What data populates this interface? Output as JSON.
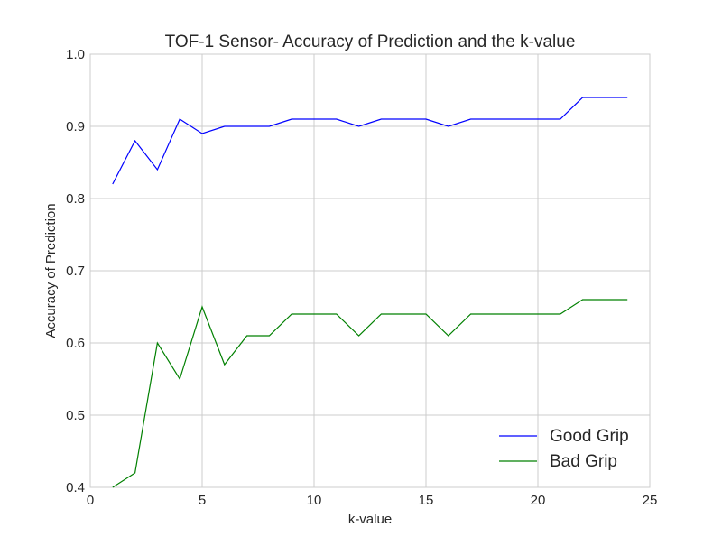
{
  "chart_data": {
    "type": "line",
    "title": "TOF-1 Sensor- Accuracy of Prediction and the k-value",
    "xlabel": "k-value",
    "ylabel": "Accuracy of Prediction",
    "xlim": [
      0,
      25
    ],
    "ylim": [
      0.4,
      1.0
    ],
    "xticks": [
      0,
      5,
      10,
      15,
      20,
      25
    ],
    "yticks": [
      0.4,
      0.5,
      0.6,
      0.7,
      0.8,
      0.9,
      1.0
    ],
    "xtick_labels": [
      "0",
      "5",
      "10",
      "15",
      "20",
      "25"
    ],
    "ytick_labels": [
      "0.4",
      "0.5",
      "0.6",
      "0.7",
      "0.8",
      "0.9",
      "1.0"
    ],
    "grid": true,
    "legend_position": "bottom-right",
    "x": [
      1,
      2,
      3,
      4,
      5,
      6,
      7,
      8,
      9,
      10,
      11,
      12,
      13,
      14,
      15,
      16,
      17,
      18,
      19,
      20,
      21,
      22,
      23,
      24
    ],
    "series": [
      {
        "name": "Good Grip",
        "color": "#0000ff",
        "values": [
          0.82,
          0.88,
          0.84,
          0.91,
          0.89,
          0.9,
          0.9,
          0.9,
          0.91,
          0.91,
          0.91,
          0.9,
          0.91,
          0.91,
          0.91,
          0.9,
          0.91,
          0.91,
          0.91,
          0.91,
          0.91,
          0.94,
          0.94,
          0.94
        ]
      },
      {
        "name": "Bad Grip",
        "color": "#008000",
        "values": [
          0.4,
          0.42,
          0.6,
          0.55,
          0.65,
          0.57,
          0.61,
          0.61,
          0.64,
          0.64,
          0.64,
          0.61,
          0.64,
          0.64,
          0.64,
          0.61,
          0.64,
          0.64,
          0.64,
          0.64,
          0.64,
          0.66,
          0.66,
          0.66
        ]
      }
    ]
  }
}
